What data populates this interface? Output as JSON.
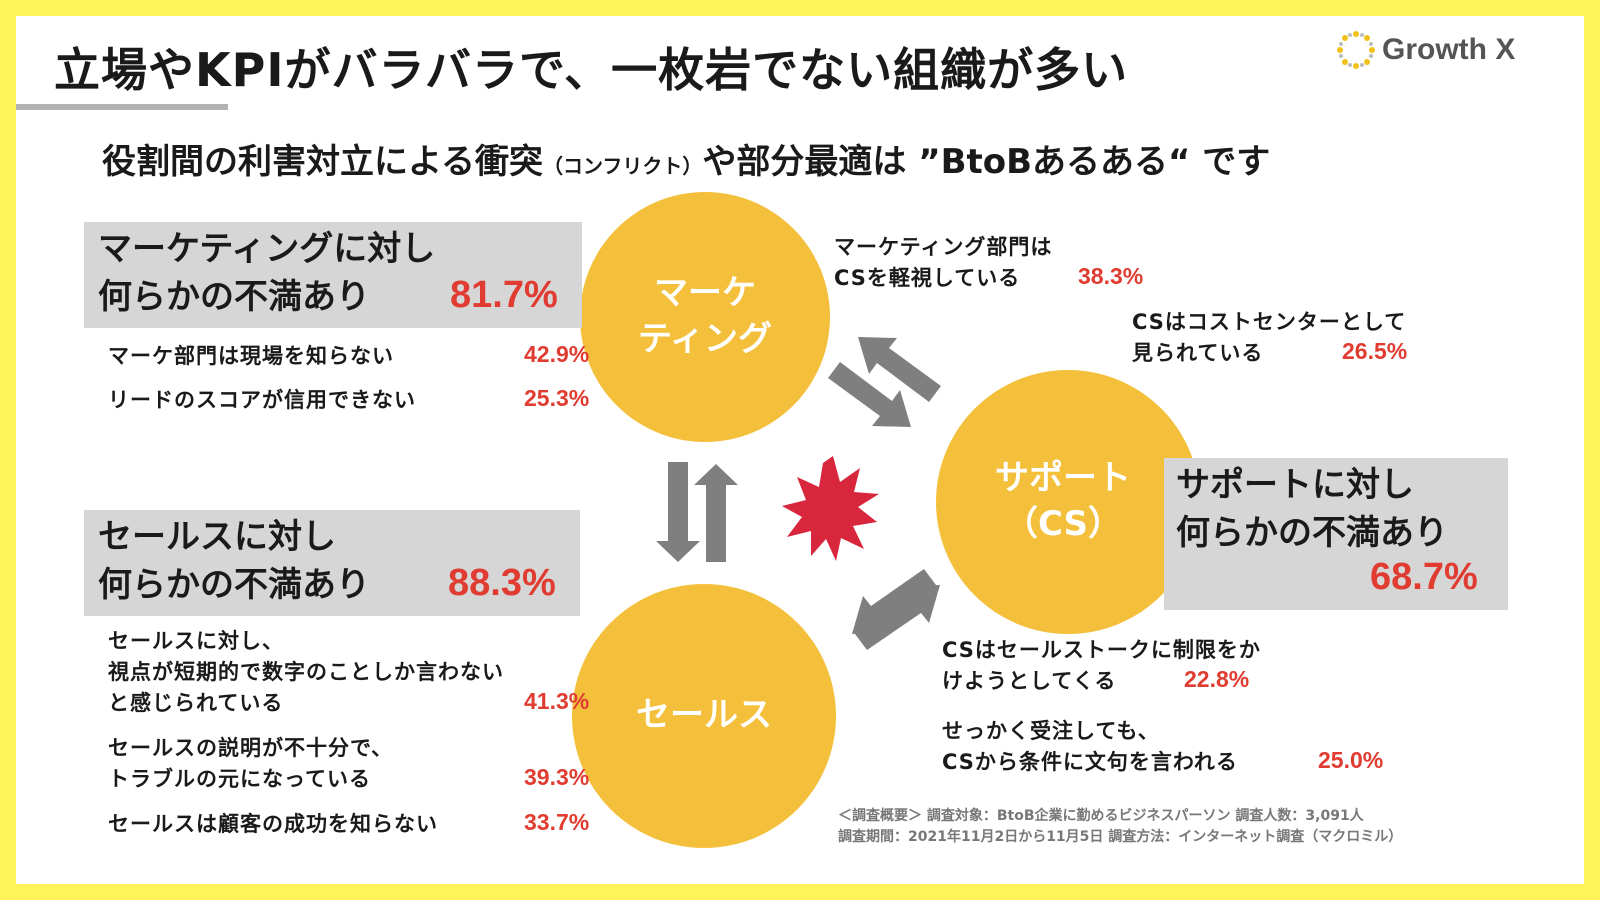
{
  "title": "立場やKPIがバラバラで、一枚岩でない組織が多い",
  "logo": {
    "text": "Growth X",
    "icon": "sunburst-logo-icon"
  },
  "subtitle": {
    "main_before": "役割間の利害対立による衝突",
    "small": "（コンフリクト）",
    "main_after": "や部分最適は ”BtoBあるある“ です"
  },
  "circles": {
    "marketing": [
      "マーケ",
      "ティング"
    ],
    "support": [
      "サポート",
      "（CS）"
    ],
    "sales": "セールス"
  },
  "marketing_box": {
    "line1": "マーケティングに対し",
    "line2": "何らかの不満あり",
    "pct": "81.7%"
  },
  "marketing_items": [
    {
      "text": "マーケ部門は現場を知らない",
      "pct": "42.9%"
    },
    {
      "text": "リードのスコアが信用できない",
      "pct": "25.3%"
    }
  ],
  "sales_box": {
    "line1": "セールスに対し",
    "line2": "何らかの不満あり",
    "pct": "88.3%"
  },
  "sales_items": [
    {
      "lines": [
        "セールスに対し、",
        "視点が短期的で数字のことしか言わない",
        "と感じられている"
      ],
      "pct": "41.3%"
    },
    {
      "lines": [
        "セールスの説明が不十分で、",
        "トラブルの元になっている"
      ],
      "pct": "39.3%"
    },
    {
      "lines": [
        "セールスは顧客の成功を知らない"
      ],
      "pct": "33.7%"
    }
  ],
  "support_box": {
    "line1": "サポートに対し",
    "line2": "何らかの不満あり",
    "pct": "68.7%"
  },
  "cs_notes": [
    {
      "lines": [
        "マーケティング部門は",
        "CSを軽視している"
      ],
      "pct": "38.3%"
    },
    {
      "lines": [
        "CSはコストセンターとして",
        "見られている"
      ],
      "pct": "26.5%"
    },
    {
      "lines": [
        "CSはセールストークに制限をか",
        "けようとしてくる"
      ],
      "pct": "22.8%"
    },
    {
      "lines": [
        "せっかく受注しても、",
        "CSから条件に文句を言われる"
      ],
      "pct": "25.0%"
    }
  ],
  "footnote": {
    "line1": "＜調査概要＞ 調査対象：BtoB企業に勤めるビジネスパーソン 調査人数：3,091人",
    "line2": "調査期間：2021年11月2日から11月5日 調査方法：インターネット調査（マクロミル）"
  },
  "colors": {
    "background": "#fdf35a",
    "circle": "#f4c03c",
    "accent": "#e03c31",
    "box": "#d6d6d6",
    "arrow": "#7f7f7f",
    "burst": "#d8263c"
  }
}
